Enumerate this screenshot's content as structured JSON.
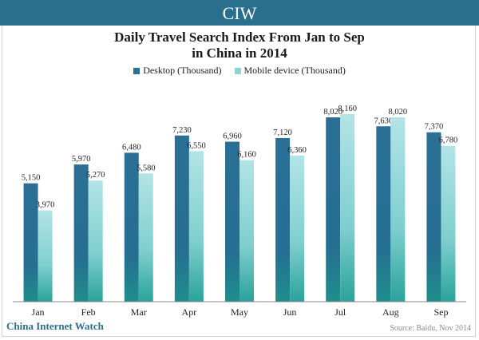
{
  "header": {
    "logo": "CIW"
  },
  "chart_data": {
    "type": "bar",
    "title_line1": "Daily Travel Search Index From Jan to Sep",
    "title_line2": "in China in 2014",
    "categories": [
      "Jan",
      "Feb",
      "Mar",
      "Apr",
      "May",
      "Jun",
      "Jul",
      "Aug",
      "Sep"
    ],
    "series": [
      {
        "name": "Desktop (Thousand)",
        "values": [
          5150,
          5970,
          6480,
          7230,
          6960,
          7120,
          8020,
          7630,
          7370
        ],
        "labels": [
          "5,150",
          "5,970",
          "6,480",
          "7,230",
          "6,960",
          "7,120",
          "8,020",
          "7,630",
          "7,370"
        ],
        "color_top": "#2b6f95",
        "color_bottom": "#1f8e8c"
      },
      {
        "name": "Mobile device (Thousand)",
        "values": [
          3970,
          5270,
          5580,
          6550,
          6160,
          6360,
          8160,
          8020,
          6780
        ],
        "labels": [
          "3,970",
          "5,270",
          "5,580",
          "6,550",
          "6,160",
          "6,360",
          "8,160",
          "8,020",
          "6,780"
        ],
        "color_top": "#a9e0e2",
        "color_bottom": "#2aa39a"
      }
    ],
    "ylim": [
      0,
      9000
    ],
    "grid": false,
    "legend_position": "top"
  },
  "footer": {
    "brand": "China Internet Watch",
    "source": "Source: Baidu, Nov 2014"
  }
}
